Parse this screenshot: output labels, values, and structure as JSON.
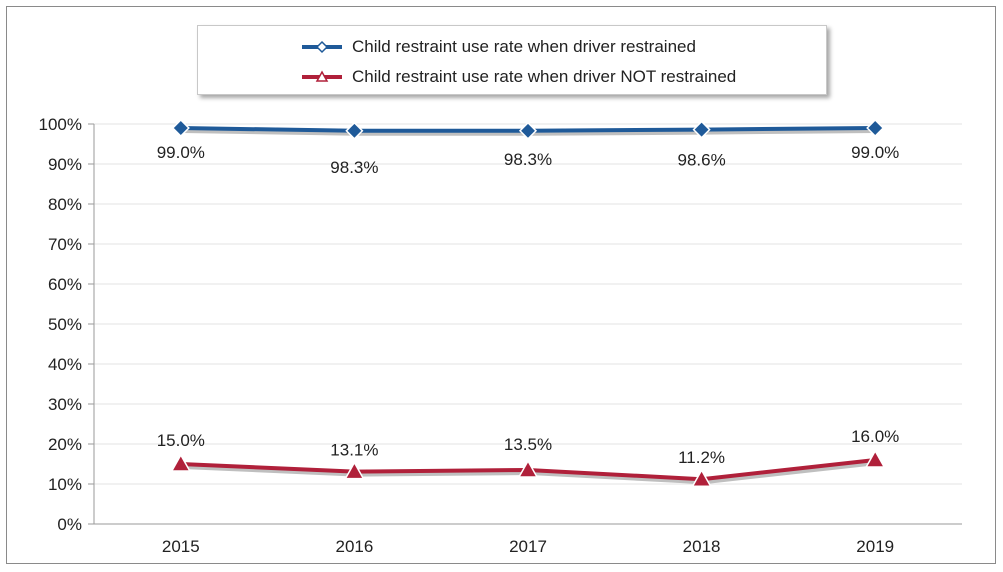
{
  "chart_data": {
    "type": "line",
    "title": "",
    "xlabel": "",
    "ylabel": "",
    "categories": [
      "2015",
      "2016",
      "2017",
      "2018",
      "2019"
    ],
    "ylim": [
      0,
      100
    ],
    "yticks": [
      "0%",
      "10%",
      "20%",
      "30%",
      "40%",
      "50%",
      "60%",
      "70%",
      "80%",
      "90%",
      "100%"
    ],
    "grid": true,
    "legend_position": "top-center",
    "series": [
      {
        "name": "Child restraint use rate when driver restrained",
        "values": [
          99.0,
          98.3,
          98.3,
          98.6,
          99.0
        ],
        "data_labels": [
          "99.0%",
          "98.3%",
          "98.3%",
          "98.6%",
          "99.0%"
        ],
        "color": "#1f5a99",
        "marker": "diamond"
      },
      {
        "name": "Child restraint use rate when driver NOT restrained",
        "values": [
          15.0,
          13.1,
          13.5,
          11.2,
          16.0
        ],
        "data_labels": [
          "15.0%",
          "13.1%",
          "13.5%",
          "11.2%",
          "16.0%"
        ],
        "color": "#b0203a",
        "marker": "triangle"
      }
    ]
  }
}
